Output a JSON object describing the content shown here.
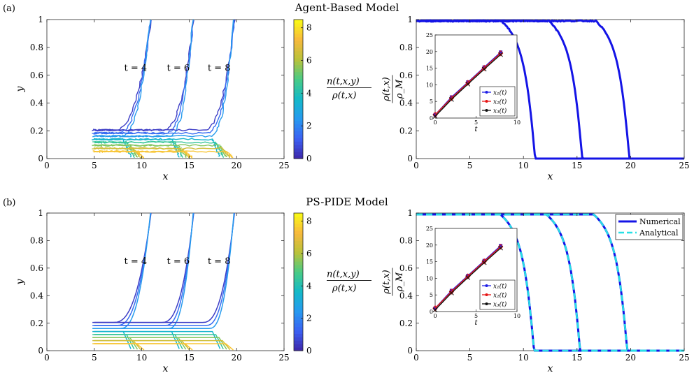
{
  "panels": [
    {
      "label": "(a)",
      "title": "Agent-Based Model"
    },
    {
      "label": "(b)",
      "title": "PS-PIDE Model"
    }
  ],
  "colorbar": {
    "label_num": "n(t,x,y)",
    "label_den": "ρ(t,x)",
    "ticks": [
      "0",
      "2",
      "4",
      "6",
      "8"
    ],
    "range": [
      0,
      8.5
    ],
    "colormap": [
      "#3e26a8",
      "#3c5ff2",
      "#2799f0",
      "#14b9c8",
      "#48cb86",
      "#b9c23b",
      "#f8b93c",
      "#f9fb15"
    ]
  },
  "time_labels": [
    "t = 4",
    "t = 6",
    "t = 8"
  ],
  "colors": {
    "numerical": "#1414e6",
    "analytical": "#27e0e6",
    "x1": "#1f1fe6",
    "x2": "#e61414",
    "x3": "#111111"
  },
  "chart_data": [
    {
      "id": "a-left",
      "type": "line",
      "subtype": "contour",
      "xlabel": "x",
      "ylabel": "y",
      "xlim": [
        0,
        25
      ],
      "ylim": [
        0,
        1
      ],
      "xticks": [
        "0",
        "5",
        "10",
        "15",
        "20",
        "25"
      ],
      "yticks": [
        "0",
        "0.2",
        "0.4",
        "0.6",
        "0.8",
        "1"
      ],
      "front_positions": [
        11,
        15.5,
        19.8
      ],
      "annotations": [
        "t = 4",
        "t = 6",
        "t = 8"
      ],
      "noisy": true
    },
    {
      "id": "a-right",
      "type": "line",
      "xlabel": "x",
      "ylabel_num": "ρ(t,x)",
      "ylabel_den": "ρ_M",
      "xlim": [
        0,
        25
      ],
      "ylim": [
        0,
        1
      ],
      "xticks": [
        "0",
        "5",
        "10",
        "15",
        "20",
        "25"
      ],
      "yticks": [
        "0",
        "0.2",
        "0.4",
        "0.6",
        "0.8",
        "1"
      ],
      "series": [
        {
          "name": "Numerical",
          "fronts": [
            11.1,
            15.5,
            19.9
          ]
        }
      ],
      "legend": "none",
      "inset": {
        "type": "line",
        "xlabel": "t",
        "xlim": [
          0,
          10
        ],
        "ylim": [
          0,
          25
        ],
        "xticks": [
          "0",
          "5",
          "10"
        ],
        "yticks": [
          "0",
          "5",
          "10",
          "15",
          "20",
          "25"
        ],
        "x": [
          0,
          2,
          4,
          6,
          8
        ],
        "series": [
          {
            "name": "x₁(t)",
            "values": [
              1.0,
              6.3,
              10.8,
              15.3,
              19.8
            ]
          },
          {
            "name": "x₂(t)",
            "values": [
              1.0,
              6.0,
              10.6,
              15.1,
              19.5
            ]
          },
          {
            "name": "x₃(t)",
            "values": [
              0.5,
              5.6,
              10.2,
              14.7,
              19.1
            ]
          }
        ],
        "legend": "bottom-right"
      }
    },
    {
      "id": "b-left",
      "type": "line",
      "subtype": "contour",
      "xlabel": "x",
      "ylabel": "y",
      "xlim": [
        0,
        25
      ],
      "ylim": [
        0,
        1
      ],
      "xticks": [
        "0",
        "5",
        "10",
        "15",
        "20",
        "25"
      ],
      "yticks": [
        "0",
        "0.2",
        "0.4",
        "0.6",
        "0.8",
        "1"
      ],
      "front_positions": [
        11,
        15.5,
        19.8
      ],
      "annotations": [
        "t = 4",
        "t = 6",
        "t = 8"
      ],
      "noisy": false
    },
    {
      "id": "b-right",
      "type": "line",
      "xlabel": "x",
      "ylabel_num": "ρ(t,x)",
      "ylabel_den": "ρ_M",
      "xlim": [
        0,
        25
      ],
      "ylim": [
        0,
        1
      ],
      "xticks": [
        "0",
        "5",
        "10",
        "15",
        "20",
        "25"
      ],
      "yticks": [
        "0",
        "0.2",
        "0.4",
        "0.6",
        "0.8",
        "1"
      ],
      "series": [
        {
          "name": "Numerical",
          "fronts": [
            11.0,
            15.3,
            19.7
          ]
        },
        {
          "name": "Analytical",
          "fronts": [
            11.0,
            15.3,
            19.7
          ]
        }
      ],
      "legend": "top-right",
      "inset": {
        "type": "line",
        "xlabel": "t",
        "xlim": [
          0,
          10
        ],
        "ylim": [
          0,
          25
        ],
        "xticks": [
          "0",
          "5",
          "10"
        ],
        "yticks": [
          "0",
          "5",
          "10",
          "15",
          "20",
          "25"
        ],
        "x": [
          0,
          2,
          4,
          6,
          8
        ],
        "series": [
          {
            "name": "x₁(t)",
            "values": [
              1.0,
              6.3,
              10.8,
              15.3,
              19.8
            ]
          },
          {
            "name": "x₂(t)",
            "values": [
              1.0,
              6.0,
              10.6,
              15.1,
              19.5
            ]
          },
          {
            "name": "x₃(t)",
            "values": [
              0.5,
              5.6,
              10.2,
              14.7,
              19.1
            ]
          }
        ],
        "legend": "bottom-right"
      }
    }
  ]
}
